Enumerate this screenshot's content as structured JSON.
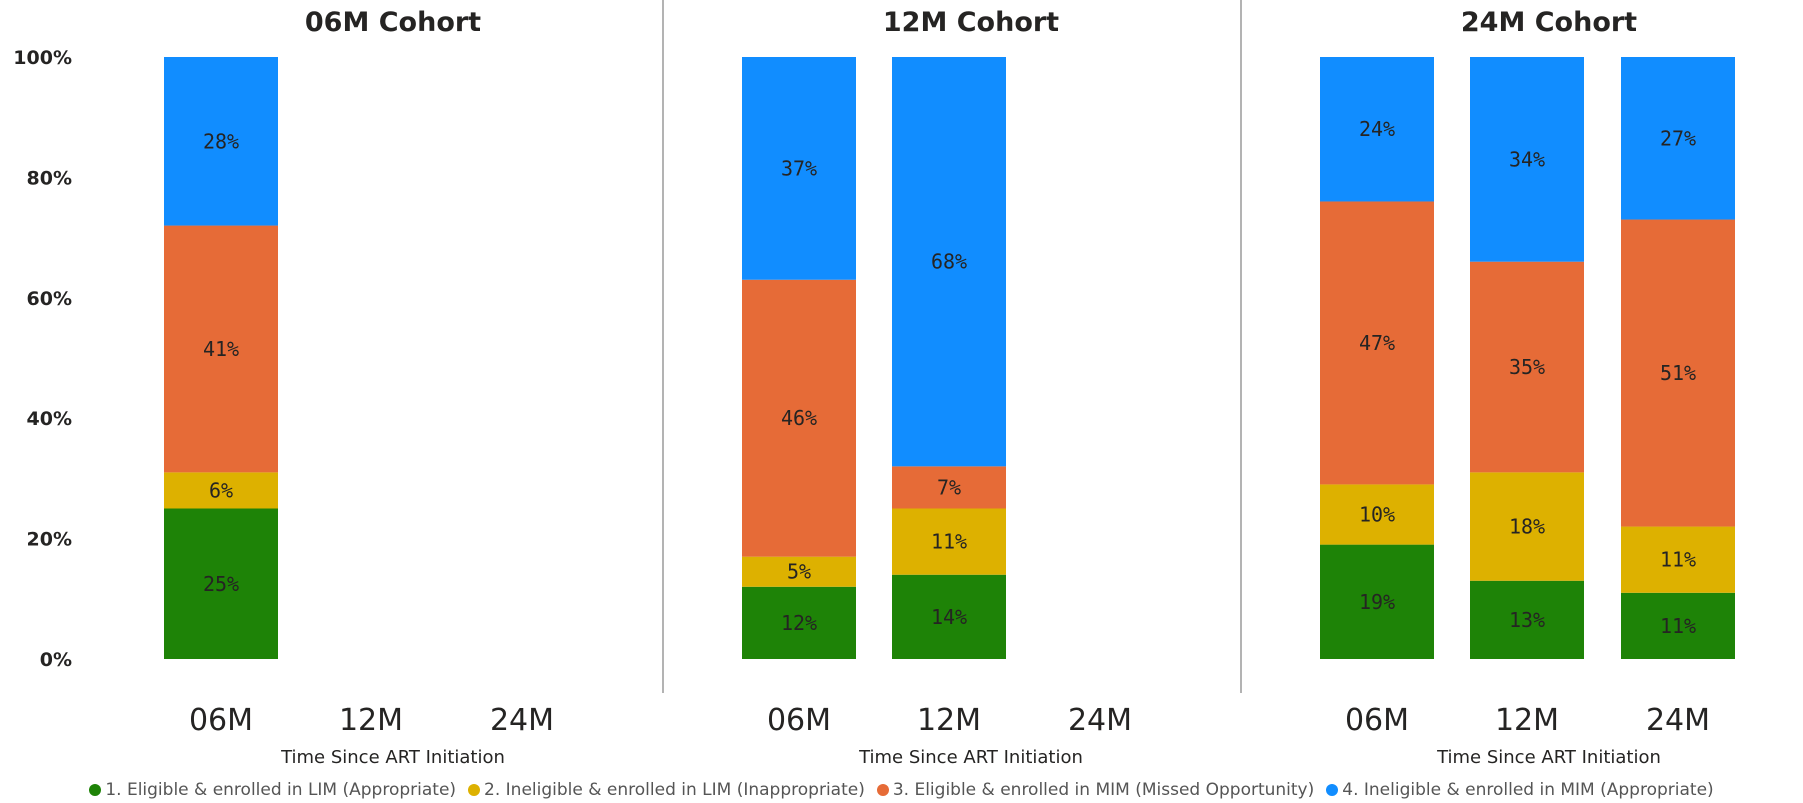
{
  "chart_data": {
    "type": "bar",
    "stacked": true,
    "y_ticks": [
      "0%",
      "20%",
      "40%",
      "60%",
      "80%",
      "100%"
    ],
    "ylim": [
      0,
      100
    ],
    "series_names": [
      "1. Eligible & enrolled in LIM (Appropriate)",
      "2. Ineligible & enrolled in LIM (Inappropriate)",
      "3. Eligible & enrolled in MIM (Missed Opportunity)",
      "4. Ineligible & enrolled in MIM (Appropriate)"
    ],
    "colors": [
      "#1E8307",
      "#DDB100",
      "#E66B37",
      "#118DFF"
    ],
    "panels": [
      {
        "title": "06M Cohort",
        "xlabel": "Time Since ART Initiation",
        "categories": [
          "06M",
          "12M",
          "24M"
        ],
        "bars": [
          {
            "category": "06M",
            "values": [
              25,
              6,
              41,
              28
            ],
            "labels": [
              "25%",
              "6%",
              "41%",
              "28%"
            ]
          }
        ]
      },
      {
        "title": "12M Cohort",
        "xlabel": "Time Since ART Initiation",
        "categories": [
          "06M",
          "12M",
          "24M"
        ],
        "bars": [
          {
            "category": "06M",
            "values": [
              12,
              5,
              46,
              37
            ],
            "labels": [
              "12%",
              "5%",
              "46%",
              "37%"
            ]
          },
          {
            "category": "12M",
            "values": [
              14,
              11,
              7,
              68
            ],
            "labels": [
              "14%",
              "11%",
              "7%",
              "68%"
            ]
          }
        ]
      },
      {
        "title": "24M Cohort",
        "xlabel": "Time Since ART Initiation",
        "categories": [
          "06M",
          "12M",
          "24M"
        ],
        "bars": [
          {
            "category": "06M",
            "values": [
              19,
              10,
              47,
              24
            ],
            "labels": [
              "19%",
              "10%",
              "47%",
              "24%"
            ]
          },
          {
            "category": "12M",
            "values": [
              13,
              18,
              35,
              34
            ],
            "labels": [
              "13%",
              "18%",
              "35%",
              "34%"
            ]
          },
          {
            "category": "24M",
            "values": [
              11,
              11,
              51,
              27
            ],
            "labels": [
              "11%",
              "11%",
              "51%",
              "27%"
            ]
          }
        ]
      }
    ]
  }
}
